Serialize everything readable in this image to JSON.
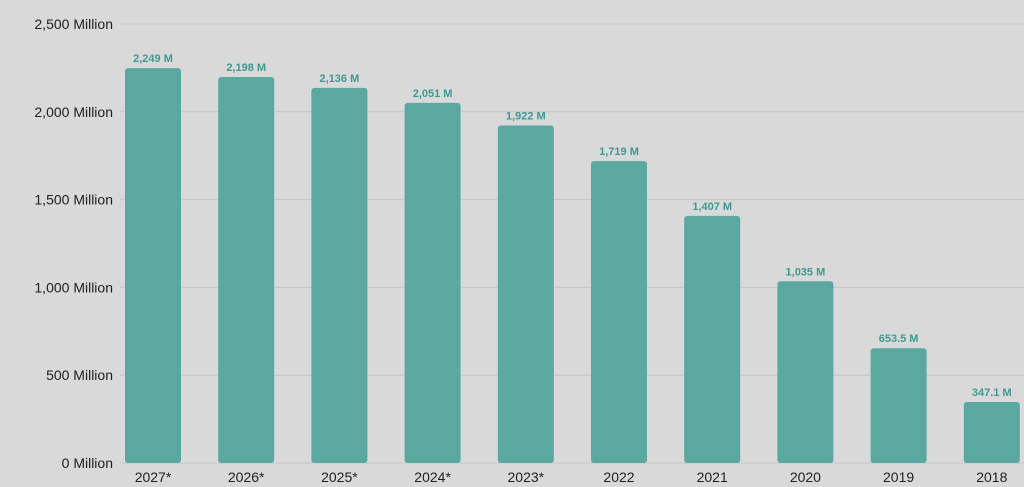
{
  "chart_data": {
    "type": "bar",
    "categories": [
      "2027*",
      "2026*",
      "2025*",
      "2024*",
      "2023*",
      "2022",
      "2021",
      "2020",
      "2019",
      "2018"
    ],
    "values": [
      2249,
      2198,
      2136,
      2051,
      1922,
      1719,
      1407,
      1035,
      653.5,
      347.1
    ],
    "value_labels": [
      "2,249 M",
      "2,198 M",
      "2,136 M",
      "2,051 M",
      "1,922 M",
      "1,719 M",
      "1,407 M",
      "1,035 M",
      "653.5 M",
      "347.1 M"
    ],
    "y_ticks": [
      0,
      500,
      1000,
      1500,
      2000,
      2500
    ],
    "y_tick_labels": [
      "0 Million",
      "500 Million",
      "1,000 Million",
      "1,500 Million",
      "2,000 Million",
      "2,500 Million"
    ],
    "ylim": [
      0,
      2500
    ],
    "grid": true,
    "colors": {
      "bar": "#5aa8a0",
      "value_label": "#3d9a90",
      "background": "#d9d9d9",
      "grid": "#c6c6c6"
    }
  }
}
